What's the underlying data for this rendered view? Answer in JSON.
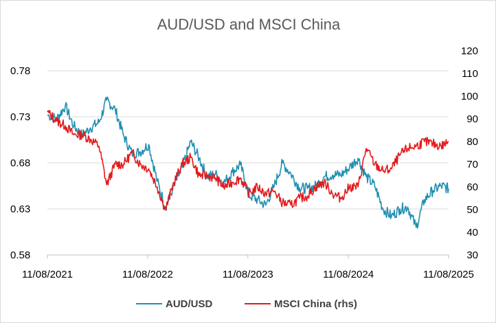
{
  "chart_data": {
    "type": "line",
    "title": "AUD/USD and MSCI China",
    "xlabel": "",
    "ylabel": "",
    "x_tick_labels": [
      "11/08/2021",
      "11/08/2022",
      "11/08/2023",
      "11/08/2024",
      "11/08/2025"
    ],
    "y_left": {
      "ticks": [
        "0.58",
        "0.63",
        "0.68",
        "0.73",
        "0.78"
      ],
      "lim": [
        0.58,
        0.78
      ]
    },
    "y_right": {
      "ticks": [
        "30",
        "40",
        "50",
        "60",
        "70",
        "80",
        "90",
        "100",
        "110",
        "120"
      ],
      "lim": [
        30,
        120
      ]
    },
    "grid": true,
    "legend_position": "bottom",
    "x_dates": [
      "2021-08-11",
      "2021-09-15",
      "2021-10-15",
      "2021-11-15",
      "2021-12-15",
      "2022-01-15",
      "2022-02-15",
      "2022-03-15",
      "2022-04-15",
      "2022-05-15",
      "2022-06-15",
      "2022-07-15",
      "2022-08-15",
      "2022-09-15",
      "2022-10-15",
      "2022-11-15",
      "2022-12-15",
      "2023-01-15",
      "2023-02-15",
      "2023-03-15",
      "2023-04-15",
      "2023-05-15",
      "2023-06-15",
      "2023-07-15",
      "2023-08-15",
      "2023-09-15",
      "2023-10-15",
      "2023-11-15",
      "2023-12-15",
      "2024-01-15",
      "2024-02-15",
      "2024-03-15",
      "2024-04-15",
      "2024-05-15",
      "2024-06-15",
      "2024-07-15",
      "2024-08-15",
      "2024-09-15",
      "2024-10-15",
      "2024-11-15",
      "2024-12-15",
      "2025-01-15",
      "2025-02-15",
      "2025-03-15",
      "2025-04-15",
      "2025-05-15",
      "2025-06-15",
      "2025-07-15",
      "2025-08-11"
    ],
    "series": [
      {
        "name": "AUD/USD",
        "axis": "left",
        "color": "#1f8fb1",
        "values": [
          0.732,
          0.728,
          0.742,
          0.72,
          0.71,
          0.718,
          0.724,
          0.748,
          0.738,
          0.71,
          0.69,
          0.692,
          0.7,
          0.66,
          0.632,
          0.655,
          0.675,
          0.703,
          0.685,
          0.665,
          0.668,
          0.658,
          0.67,
          0.678,
          0.645,
          0.64,
          0.634,
          0.655,
          0.68,
          0.668,
          0.653,
          0.652,
          0.655,
          0.665,
          0.667,
          0.667,
          0.675,
          0.685,
          0.665,
          0.655,
          0.63,
          0.622,
          0.63,
          0.632,
          0.61,
          0.64,
          0.65,
          0.655,
          0.652
        ]
      },
      {
        "name": "MSCI China (rhs)",
        "axis": "right",
        "color": "#e31a1c",
        "values": [
          93,
          89,
          87,
          83,
          83,
          81,
          78,
          61,
          70,
          70,
          75,
          70,
          68,
          60,
          50,
          62,
          70,
          73,
          65,
          65,
          64,
          60,
          62,
          64,
          57,
          60,
          57,
          58,
          53,
          52,
          55,
          56,
          60,
          62,
          57,
          55,
          60,
          60,
          77,
          70,
          67,
          68,
          74,
          77,
          78,
          80,
          79,
          78,
          80
        ]
      }
    ]
  }
}
